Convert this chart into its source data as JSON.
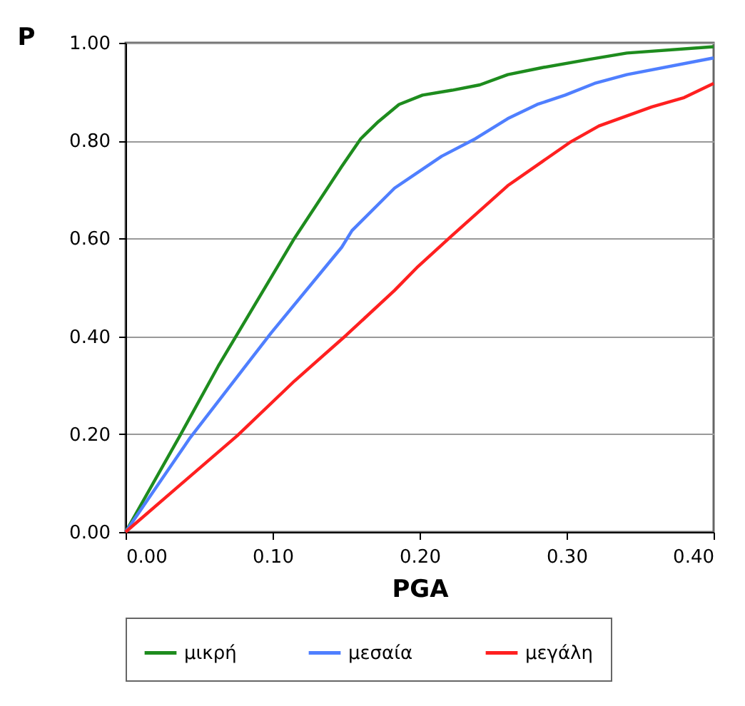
{
  "chart_data": {
    "type": "line",
    "xlabel": "PGA",
    "ylabel": "P",
    "xlim": [
      0,
      0.4
    ],
    "ylim": [
      0,
      1
    ],
    "xticks": [
      {
        "value": 0,
        "label": "0.00"
      },
      {
        "value": 0.1,
        "label": "0.10"
      },
      {
        "value": 0.2,
        "label": "0.20"
      },
      {
        "value": 0.3,
        "label": "0.30"
      },
      {
        "value": 0.4,
        "label": "0.40"
      }
    ],
    "yticks": [
      {
        "value": 0,
        "label": "0.00"
      },
      {
        "value": 0.2,
        "label": "0.20"
      },
      {
        "value": 0.4,
        "label": "0.40"
      },
      {
        "value": 0.6,
        "label": "0.60"
      },
      {
        "value": 0.8,
        "label": "0.80"
      },
      {
        "value": 1,
        "label": "1.00"
      }
    ],
    "grid": "y",
    "legend": "bottom",
    "marker": "none",
    "line_style": "solid",
    "series": [
      {
        "name": "μικρή",
        "color": "#1e8c1e",
        "x": [
          0,
          0.037,
          0.063,
          0.115,
          0.147,
          0.16,
          0.172,
          0.186,
          0.202,
          0.222,
          0.241,
          0.26,
          0.283,
          0.315,
          0.341,
          0.4
        ],
        "values": [
          0,
          0.197,
          0.339,
          0.601,
          0.747,
          0.804,
          0.839,
          0.874,
          0.893,
          0.903,
          0.914,
          0.935,
          0.949,
          0.966,
          0.979,
          0.992
        ]
      },
      {
        "name": "μεσαία",
        "color": "#4f7fff",
        "x": [
          0,
          0.044,
          0.099,
          0.147,
          0.154,
          0.183,
          0.215,
          0.238,
          0.26,
          0.28,
          0.299,
          0.319,
          0.341,
          0.4
        ],
        "values": [
          0,
          0.193,
          0.407,
          0.582,
          0.616,
          0.703,
          0.768,
          0.804,
          0.845,
          0.874,
          0.893,
          0.917,
          0.935,
          0.969
        ]
      },
      {
        "name": "μεγάλη",
        "color": "#ff2020",
        "x": [
          0,
          0.076,
          0.115,
          0.15,
          0.183,
          0.199,
          0.222,
          0.26,
          0.302,
          0.322,
          0.358,
          0.38,
          0.4
        ],
        "values": [
          0,
          0.197,
          0.309,
          0.402,
          0.494,
          0.543,
          0.606,
          0.708,
          0.796,
          0.83,
          0.869,
          0.888,
          0.917
        ]
      }
    ]
  }
}
